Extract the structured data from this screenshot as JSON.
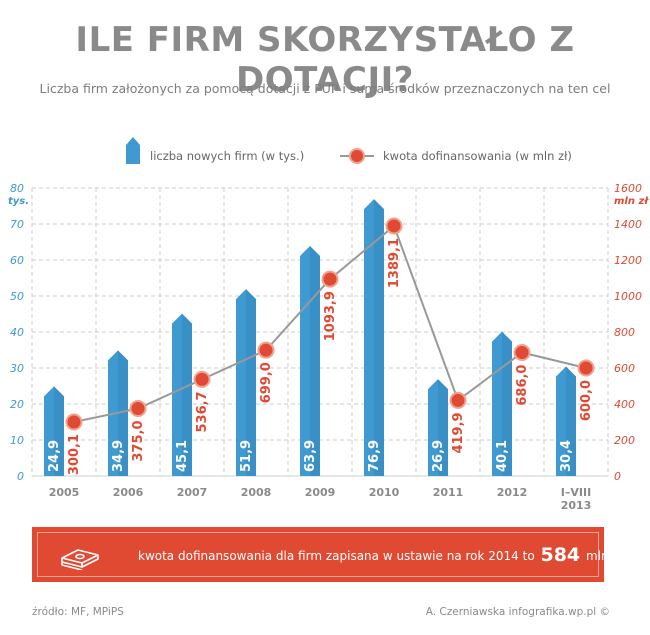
{
  "title": "ILE FIRM SKORZYSTAŁO Z DOTACJI?",
  "subtitle": "Liczba firm założonych za pomocą dotacji z PUP i suma środków przeznaczonych na ten cel",
  "colors": {
    "bar": "#3f9ad1",
    "bar_dark": "#2c7fb5",
    "line": "#999999",
    "marker": "#e04a33",
    "left_axis": "#3f9ad1",
    "right_axis": "#e04a33",
    "banner": "#e04a33"
  },
  "chart_data": {
    "type": "bar+line",
    "categories": [
      [
        "2005"
      ],
      [
        "2006"
      ],
      [
        "2007"
      ],
      [
        "2008"
      ],
      [
        "2009"
      ],
      [
        "2010"
      ],
      [
        "2011"
      ],
      [
        "2012"
      ],
      [
        "I–VIII",
        "2013"
      ]
    ],
    "series": [
      {
        "name": "liczba nowych firm (w tys.)",
        "type": "bar",
        "axis": "left",
        "values": [
          24.9,
          34.9,
          45.1,
          51.9,
          63.9,
          76.9,
          26.9,
          40.1,
          30.4
        ],
        "labels": [
          "24,9",
          "34,9",
          "45,1",
          "51,9",
          "63,9",
          "76,9",
          "26,9",
          "40,1",
          "30,4"
        ]
      },
      {
        "name": "kwota dofinansowania (w mln zł)",
        "type": "line",
        "axis": "right",
        "values": [
          300.1,
          375.0,
          536.7,
          699.0,
          1093.9,
          1389.1,
          419.9,
          686.0,
          600.0
        ],
        "labels": [
          "300,1",
          "375,0",
          "536,7",
          "699,0",
          "1093,9",
          "1389,1",
          "419,9",
          "686,0",
          "600,0"
        ]
      }
    ],
    "y_left": {
      "range": [
        0,
        80
      ],
      "ticks": [
        0,
        10,
        20,
        30,
        40,
        50,
        60,
        70,
        80
      ],
      "unit": "tys."
    },
    "y_right": {
      "range": [
        0,
        1600
      ],
      "ticks": [
        0,
        200,
        400,
        600,
        800,
        1000,
        1200,
        1400,
        1600
      ],
      "unit": "mln zł"
    },
    "grid": true,
    "legend_placement": "top"
  },
  "banner": {
    "text": "kwota dofinansowania dla firm zapisana w ustawie na rok 2014 to",
    "amount": "584",
    "unit": "mln zł",
    "icon": "money-stack-icon"
  },
  "footer": {
    "source": "źródło: MF, MPiPS",
    "credit": "A. Czerniawska infografika.wp.pl ©"
  }
}
